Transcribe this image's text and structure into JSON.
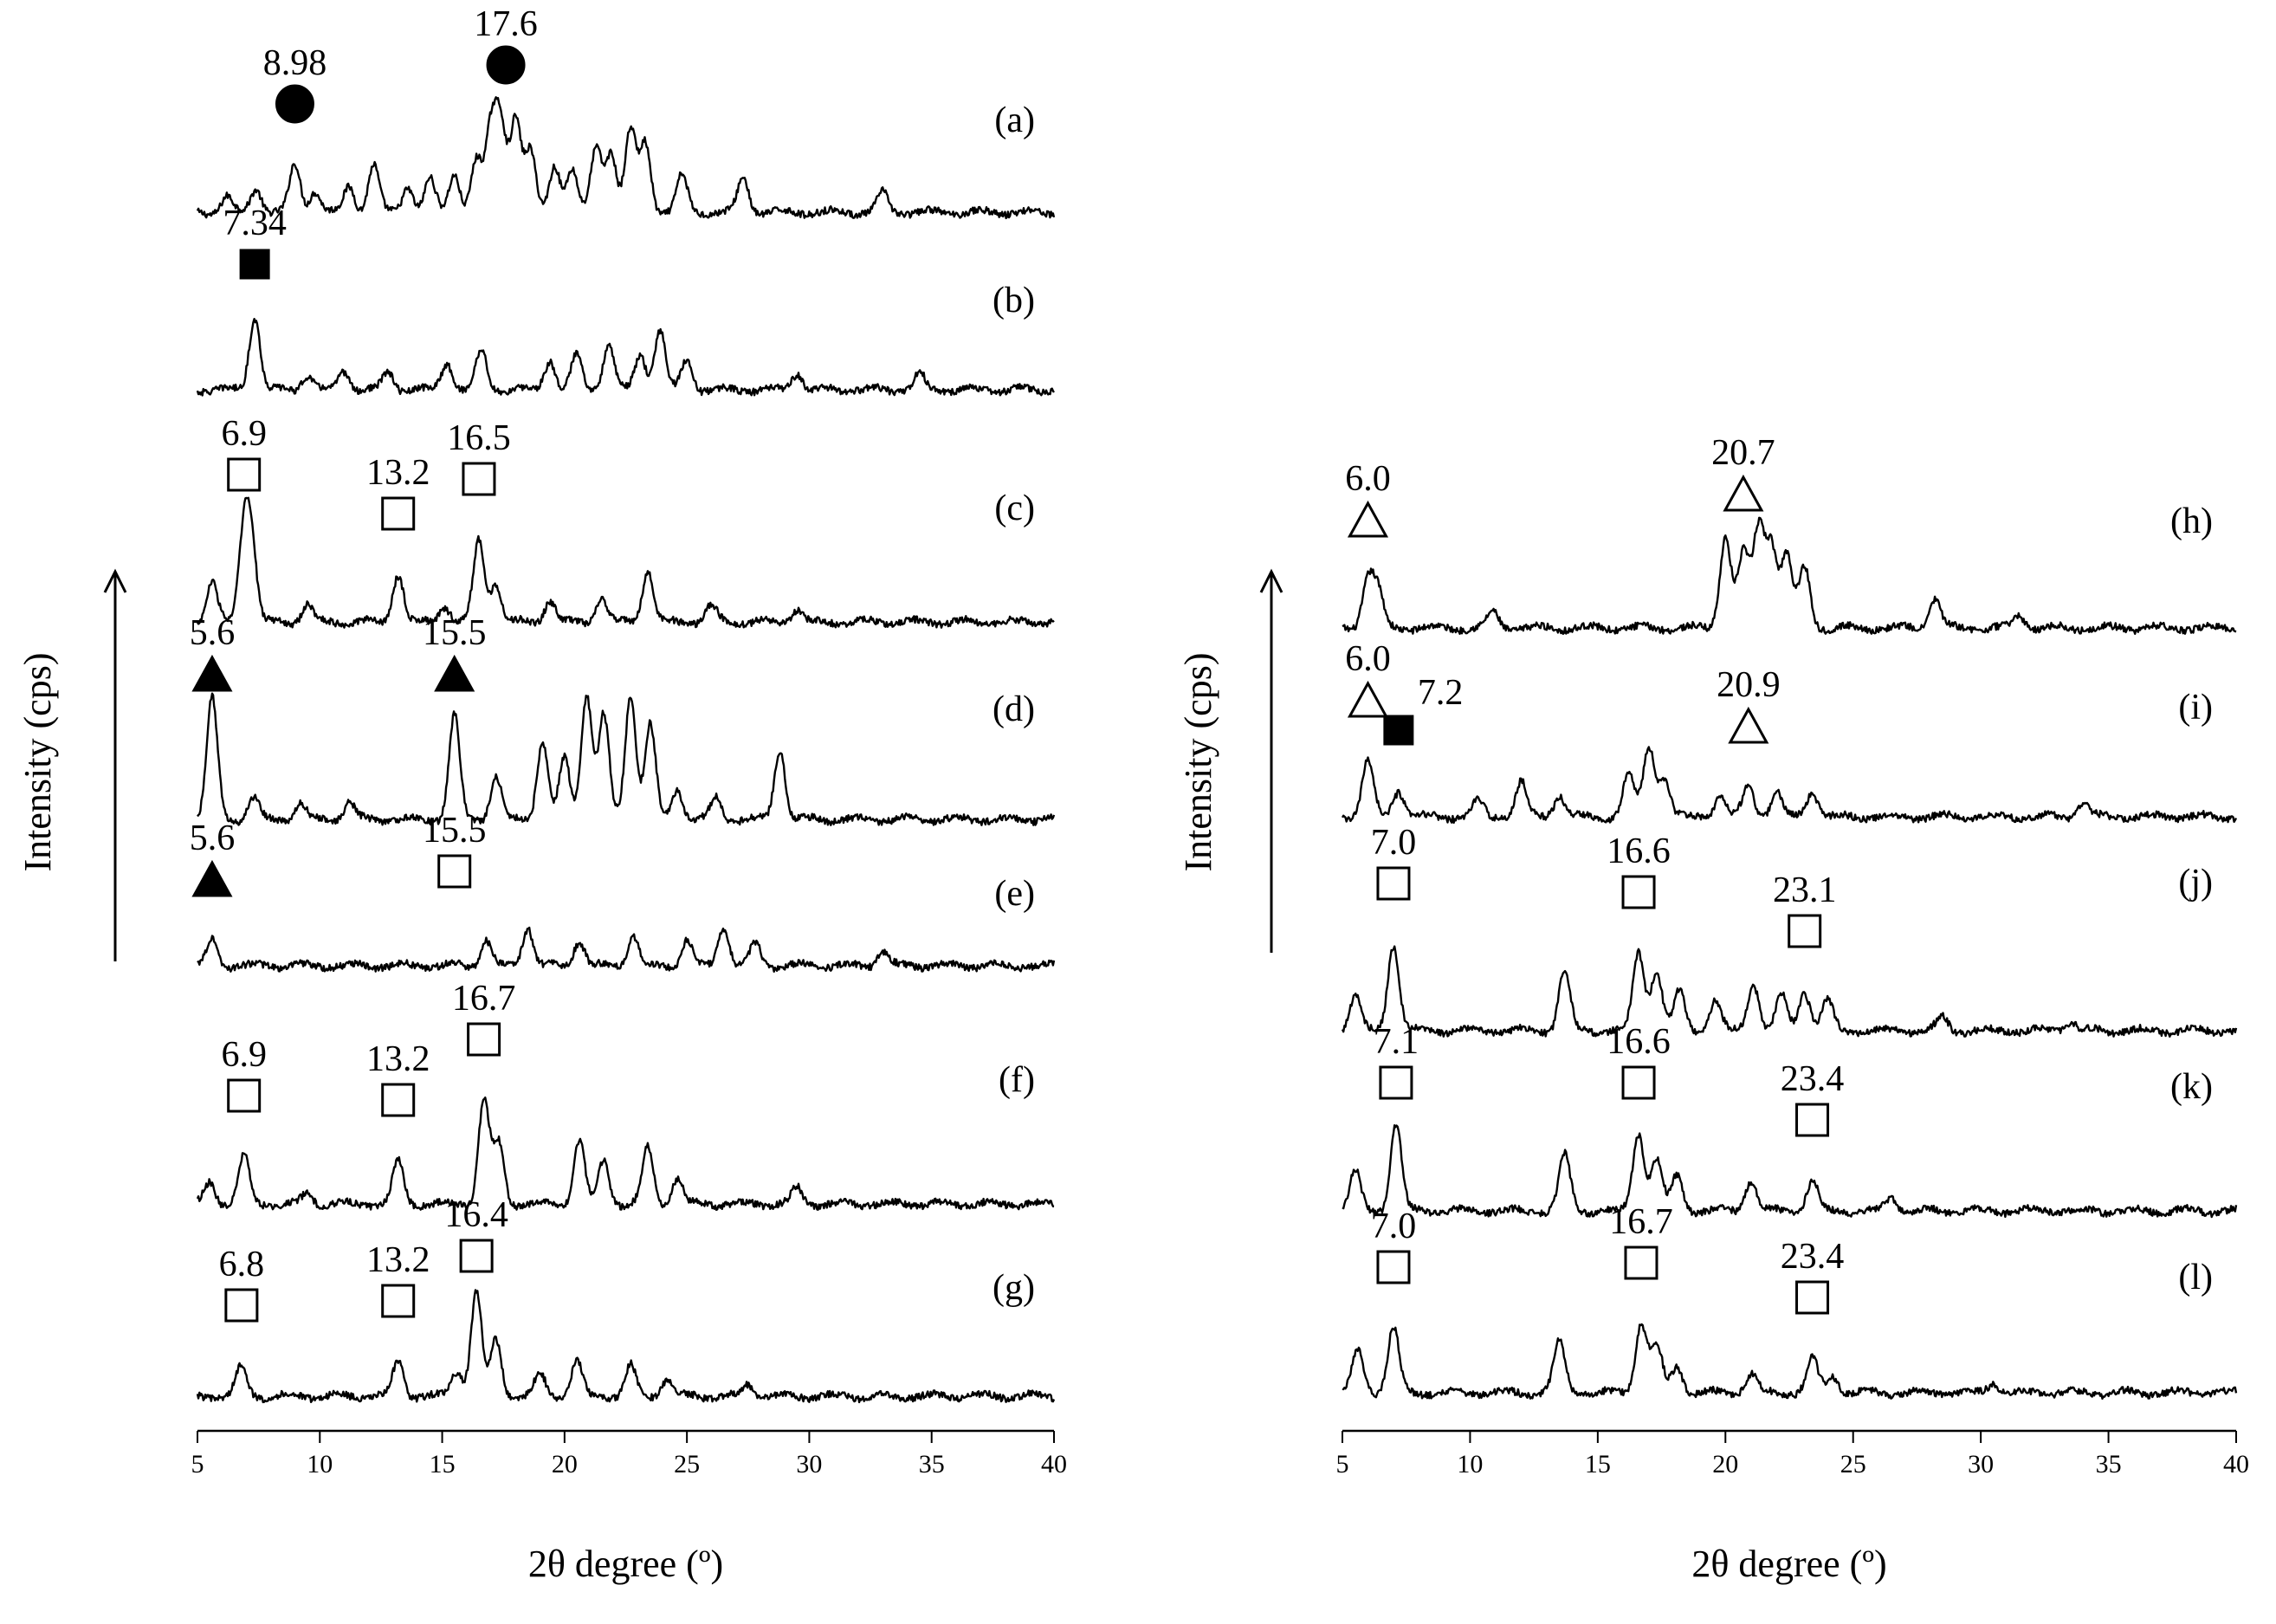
{
  "chart_data": [
    {
      "type": "line",
      "title": "",
      "xlabel": "2θ degree (º)",
      "ylabel": "Intensity (cps)",
      "xlim": [
        5,
        40
      ],
      "xticks": [
        5,
        10,
        15,
        20,
        25,
        30,
        35,
        40
      ],
      "yticks": [],
      "grid": false,
      "series": [
        {
          "name": "(a)",
          "peaks": [
            {
              "x": 8.98,
              "label": "8.98",
              "marker": "filled-circle"
            },
            {
              "x": 17.6,
              "label": "17.6",
              "marker": "filled-circle"
            }
          ]
        },
        {
          "name": "(b)",
          "peaks": [
            {
              "x": 7.34,
              "label": "7.34",
              "marker": "filled-square"
            }
          ]
        },
        {
          "name": "(c)",
          "peaks": [
            {
              "x": 6.9,
              "label": "6.9",
              "marker": "open-square"
            },
            {
              "x": 13.2,
              "label": "13.2",
              "marker": "open-square"
            },
            {
              "x": 16.5,
              "label": "16.5",
              "marker": "open-square"
            }
          ]
        },
        {
          "name": "(d)",
          "peaks": [
            {
              "x": 5.6,
              "label": "5.6",
              "marker": "filled-triangle"
            },
            {
              "x": 15.5,
              "label": "15.5",
              "marker": "filled-triangle"
            }
          ]
        },
        {
          "name": "(e)",
          "peaks": [
            {
              "x": 5.6,
              "label": "5.6",
              "marker": "filled-triangle"
            },
            {
              "x": 15.5,
              "label": "15.5",
              "marker": "open-square"
            }
          ]
        },
        {
          "name": "(f)",
          "peaks": [
            {
              "x": 6.9,
              "label": "6.9",
              "marker": "open-square"
            },
            {
              "x": 13.2,
              "label": "13.2",
              "marker": "open-square"
            },
            {
              "x": 16.7,
              "label": "16.7",
              "marker": "open-square"
            }
          ]
        },
        {
          "name": "(g)",
          "peaks": [
            {
              "x": 6.8,
              "label": "6.8",
              "marker": "open-square"
            },
            {
              "x": 13.2,
              "label": "13.2",
              "marker": "open-square"
            },
            {
              "x": 16.4,
              "label": "16.4",
              "marker": "open-square"
            }
          ]
        }
      ]
    },
    {
      "type": "line",
      "title": "",
      "xlabel": "2θ degree (º)",
      "ylabel": "Intensity (cps)",
      "xlim": [
        5,
        40
      ],
      "xticks": [
        5,
        10,
        15,
        20,
        25,
        30,
        35,
        40
      ],
      "yticks": [],
      "grid": false,
      "series": [
        {
          "name": "(h)",
          "peaks": [
            {
              "x": 6.0,
              "label": "6.0",
              "marker": "open-triangle"
            },
            {
              "x": 20.7,
              "label": "20.7",
              "marker": "open-triangle"
            }
          ]
        },
        {
          "name": "(i)",
          "peaks": [
            {
              "x": 6.0,
              "label": "6.0",
              "marker": "open-triangle"
            },
            {
              "x": 7.2,
              "label": "7.2",
              "marker": "filled-square"
            },
            {
              "x": 20.9,
              "label": "20.9",
              "marker": "open-triangle"
            }
          ]
        },
        {
          "name": "(j)",
          "peaks": [
            {
              "x": 7.0,
              "label": "7.0",
              "marker": "open-square"
            },
            {
              "x": 16.6,
              "label": "16.6",
              "marker": "open-square"
            },
            {
              "x": 23.1,
              "label": "23.1",
              "marker": "open-square"
            }
          ]
        },
        {
          "name": "(k)",
          "peaks": [
            {
              "x": 7.1,
              "label": "7.1",
              "marker": "open-square"
            },
            {
              "x": 16.6,
              "label": "16.6",
              "marker": "open-square"
            },
            {
              "x": 23.4,
              "label": "23.4",
              "marker": "open-square"
            }
          ]
        },
        {
          "name": "(l)",
          "peaks": [
            {
              "x": 7.0,
              "label": "7.0",
              "marker": "open-square"
            },
            {
              "x": 16.7,
              "label": "16.7",
              "marker": "open-square"
            },
            {
              "x": 23.4,
              "label": "23.4",
              "marker": "open-square"
            }
          ]
        }
      ]
    }
  ]
}
